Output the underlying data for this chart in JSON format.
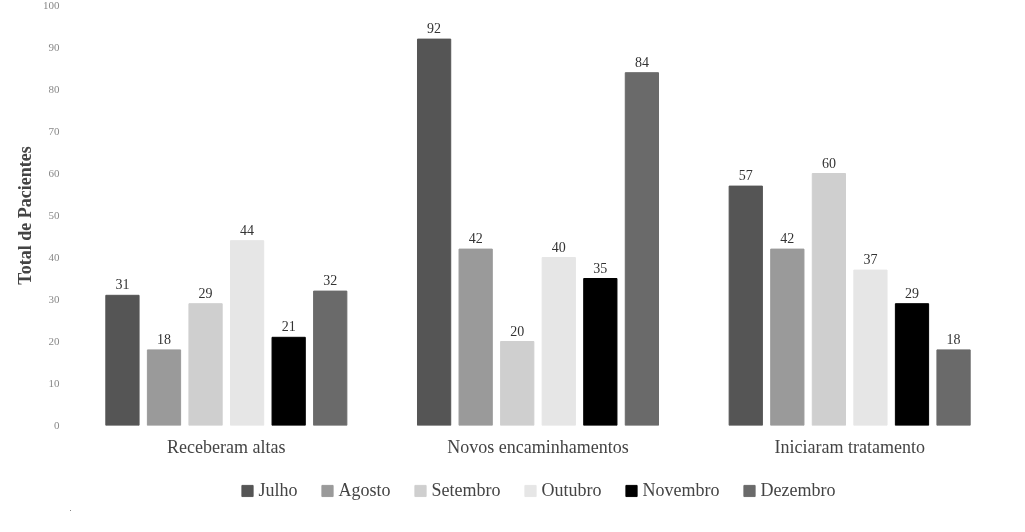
{
  "chart_data": {
    "type": "bar",
    "ylabel": "Total de Pacientes",
    "categories": [
      "Receberam altas",
      "Novos encaminhamentos",
      "Iniciaram tratamento"
    ],
    "series": [
      {
        "name": "Julho",
        "color": "#555555",
        "values": [
          31,
          92,
          57
        ]
      },
      {
        "name": "Agosto",
        "color": "#9a9a9a",
        "values": [
          18,
          42,
          42
        ]
      },
      {
        "name": "Setembro",
        "color": "#cfcfcf",
        "values": [
          29,
          20,
          60
        ]
      },
      {
        "name": "Outubro",
        "color": "#e6e6e6",
        "values": [
          44,
          40,
          37
        ]
      },
      {
        "name": "Novembro",
        "color": "#000000",
        "values": [
          21,
          35,
          29
        ]
      },
      {
        "name": "Dezembro",
        "color": "#6a6a6a",
        "values": [
          32,
          84,
          18
        ]
      }
    ],
    "ylim": [
      0,
      100
    ],
    "yticks": [
      0,
      10,
      20,
      30,
      40,
      50,
      60,
      70,
      80,
      90,
      100
    ],
    "data_labels": true,
    "grid": false,
    "legend": "bottom"
  }
}
